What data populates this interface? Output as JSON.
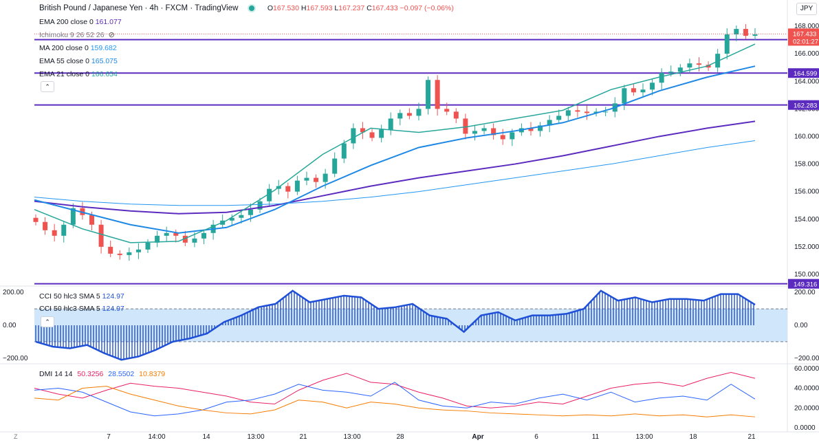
{
  "header": {
    "symbol": "British Pound / Japanese Yen",
    "interval": "4h",
    "exchange": "FXCM",
    "platform": "TradingView",
    "open_label": "O",
    "open": "167.530",
    "high_label": "H",
    "high": "167.593",
    "low_label": "L",
    "low": "167.237",
    "close_label": "C",
    "close": "167.433",
    "change": "−0.097 (−0.06%)",
    "currency": "JPY"
  },
  "indicators": [
    {
      "label": "EMA 200 close 0",
      "value": "161.077",
      "color": "#5b2bbf"
    },
    {
      "label": "Ichimoku 9 26 52 26",
      "value": "",
      "color": "#787b86"
    },
    {
      "label": "MA 200 close 0",
      "value": "159.682",
      "color": "#2196f3"
    },
    {
      "label": "EMA 55 close 0",
      "value": "165.075",
      "color": "#1e88e5"
    },
    {
      "label": "EMA 21 close 0",
      "value": "166.654",
      "color": "#26a69a"
    }
  ],
  "cci_legend": [
    {
      "label": "CCI 50 hlc3 SMA 5",
      "value": "124.97"
    },
    {
      "label": "CCI 50 hlc3 SMA 5",
      "value": "124.97"
    }
  ],
  "dmi_legend": {
    "label": "DMI 14 14",
    "plus": "50.3256",
    "minus": "28.5502",
    "adx": "10.8379"
  },
  "price_badges": {
    "last": "167.433",
    "countdown": "02:01:27"
  },
  "colors": {
    "up": "#26a69a",
    "down": "#ef5350",
    "hline": "#5b2bbf",
    "ema200": "#5b2bbf",
    "ma200": "#2196f3",
    "ema55": "#1e88e5",
    "ema21": "#26a69a",
    "cci": "#1e4fd6",
    "cci_fill": "#cfe6fb",
    "plus_di": "#e91e63",
    "minus_di": "#2962ff",
    "adx": "#f57c00"
  },
  "chart_data": [
    {
      "type": "candlestick",
      "title": "British Pound / Japanese Yen · 4h · FXCM",
      "x_labels": [
        "7",
        "14:00",
        "14",
        "13:00",
        "21",
        "13:00",
        "28",
        "Apr",
        "6",
        "11",
        "13:00",
        "18",
        "21"
      ],
      "y_ticks": [
        "150.000",
        "152.000",
        "154.000",
        "156.000",
        "158.000",
        "160.000",
        "162.000",
        "164.000",
        "166.000",
        "168.000"
      ],
      "ylim": [
        149.2,
        169.0
      ],
      "horizontal_lines": [
        "167.021",
        "164.599",
        "162.283",
        "149.316"
      ],
      "ohlc_close_path": [
        153.8,
        153.2,
        152.8,
        153.6,
        154.8,
        154.3,
        153.6,
        152.0,
        151.5,
        151.4,
        151.6,
        151.8,
        152.3,
        152.8,
        153.0,
        152.8,
        152.3,
        152.6,
        153.0,
        153.6,
        153.9,
        154.1,
        154.3,
        154.7,
        155.3,
        156.2,
        156.4,
        156.0,
        156.8,
        157.0,
        156.7,
        157.3,
        158.4,
        159.5,
        160.6,
        160.3,
        159.9,
        160.5,
        161.3,
        161.7,
        161.5,
        162.0,
        164.1,
        162.0,
        161.8,
        161.3,
        160.2,
        160.4,
        160.6,
        160.1,
        159.8,
        160.3,
        160.6,
        160.4,
        160.8,
        161.2,
        161.5,
        161.9,
        161.8,
        161.7,
        161.8,
        161.8,
        162.4,
        163.5,
        163.2,
        163.4,
        163.9,
        164.6,
        164.7,
        165.0,
        165.3,
        165.2,
        165.0,
        166.0,
        167.4,
        167.8,
        167.3,
        167.4
      ],
      "series": [
        {
          "name": "EMA 200 close 0",
          "values": [
            155.3,
            154.9,
            154.6,
            154.4,
            154.5,
            155.0,
            155.7,
            156.4,
            157.0,
            157.5,
            158.0,
            158.6,
            159.3,
            160.0,
            160.6,
            161.1
          ]
        },
        {
          "name": "MA 200 close 0",
          "values": [
            155.6,
            155.3,
            155.1,
            155.0,
            155.0,
            155.1,
            155.3,
            155.6,
            156.0,
            156.5,
            157.0,
            157.5,
            158.0,
            158.6,
            159.2,
            159.7
          ]
        },
        {
          "name": "EMA 55 close 0",
          "values": [
            155.4,
            154.5,
            153.6,
            153.0,
            153.4,
            154.7,
            156.4,
            157.9,
            159.2,
            159.9,
            160.4,
            161.0,
            162.0,
            163.3,
            164.3,
            165.1
          ]
        },
        {
          "name": "EMA 21 close 0",
          "values": [
            154.7,
            153.3,
            152.3,
            152.4,
            153.9,
            156.1,
            158.7,
            160.6,
            160.3,
            160.7,
            161.3,
            161.9,
            163.4,
            164.3,
            165.1,
            166.7
          ]
        }
      ]
    },
    {
      "type": "area",
      "title": "CCI 50 hlc3 SMA 5",
      "y_ticks": [
        "200.00",
        "0.00",
        "−200.00"
      ],
      "ylim": [
        -230,
        230
      ],
      "bands": [
        100,
        -100
      ],
      "values": [
        -100,
        -130,
        -140,
        -120,
        -170,
        -210,
        -190,
        -150,
        -100,
        -80,
        -50,
        20,
        60,
        110,
        130,
        210,
        140,
        160,
        180,
        170,
        100,
        110,
        130,
        60,
        40,
        -40,
        60,
        80,
        30,
        60,
        60,
        70,
        100,
        210,
        150,
        170,
        140,
        160,
        160,
        150,
        190,
        190,
        125
      ]
    },
    {
      "type": "line",
      "title": "DMI 14 14",
      "y_ticks": [
        "60.0000",
        "40.0000",
        "20.0000",
        "0.0000"
      ],
      "ylim": [
        0,
        64
      ],
      "series": [
        {
          "name": "+DI",
          "values": [
            40,
            34,
            30,
            38,
            45,
            42,
            40,
            36,
            32,
            26,
            24,
            38,
            48,
            55,
            46,
            44,
            36,
            30,
            22,
            20,
            22,
            26,
            24,
            32,
            40,
            44,
            46,
            42,
            50,
            56,
            50
          ]
        },
        {
          "name": "-DI",
          "values": [
            38,
            40,
            36,
            26,
            16,
            12,
            14,
            18,
            26,
            28,
            34,
            44,
            38,
            36,
            32,
            46,
            28,
            22,
            20,
            26,
            24,
            30,
            34,
            28,
            36,
            26,
            30,
            32,
            28,
            44,
            29
          ]
        },
        {
          "name": "ADX",
          "values": [
            30,
            28,
            40,
            42,
            34,
            28,
            22,
            18,
            15,
            14,
            18,
            28,
            26,
            20,
            26,
            24,
            20,
            18,
            17,
            15,
            14,
            13,
            12,
            13,
            12,
            14,
            12,
            13,
            11,
            13,
            11
          ]
        }
      ]
    }
  ]
}
